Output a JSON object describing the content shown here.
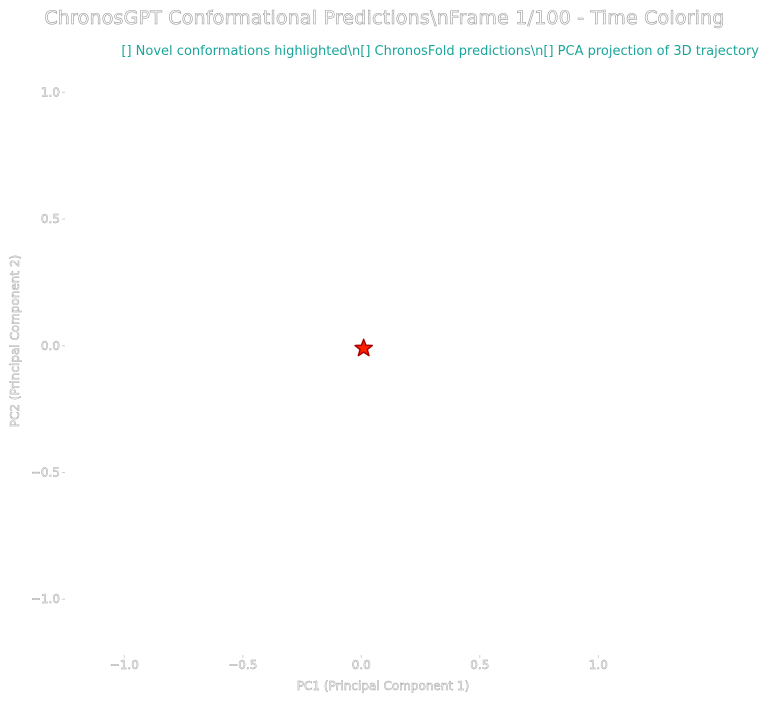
{
  "chart_data": {
    "type": "scatter",
    "title": "ChronosGPT Conformational Predictions\\nFrame 1/100 - Time Coloring",
    "annotation": "[] Novel conformations highlighted\\n[] ChronosFold predictions\\n[] PCA projection of 3D trajectory",
    "xlabel": "PC1 (Principal Component 1)",
    "ylabel": "PC2 (Principal Component 2)",
    "xlim": [
      -1.25,
      1.45
    ],
    "ylim": [
      -1.22,
      1.1
    ],
    "xticks": [
      -1.0,
      -0.5,
      0.0,
      0.5,
      1.0
    ],
    "yticks": [
      1.0,
      0.5,
      0.0,
      -0.5,
      -1.0
    ],
    "xtick_labels": [
      "−1.0",
      "−0.5",
      "0.0",
      "0.5",
      "1.0"
    ],
    "ytick_labels": [
      "1.0",
      "0.5",
      "0.0",
      "−0.5",
      "−1.0"
    ],
    "grid": false,
    "points": [
      {
        "x": 0.01,
        "y": -0.01,
        "marker": "star",
        "color": "#ff2200",
        "edge_color": "#aa0000"
      }
    ]
  }
}
